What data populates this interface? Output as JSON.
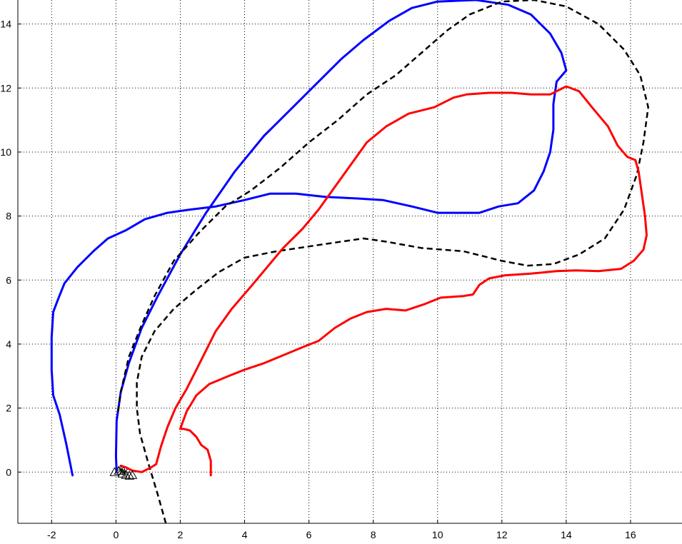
{
  "chart_data": {
    "type": "line",
    "title": "",
    "xlabel": "",
    "ylabel": "",
    "xlim": [
      -3.05,
      17.6
    ],
    "ylim": [
      -1.6,
      14.75
    ],
    "grid": true,
    "xticks": [
      -2,
      0,
      2,
      4,
      6,
      8,
      10,
      12,
      14,
      16
    ],
    "yticks": [
      0,
      2,
      4,
      6,
      8,
      10,
      12,
      14
    ],
    "series": [
      {
        "color": "#0000ff",
        "style": "solid",
        "points": [
          [
            -1.35,
            -0.1
          ],
          [
            -1.55,
            0.9
          ],
          [
            -1.75,
            1.8
          ],
          [
            -1.95,
            2.4
          ],
          [
            -2.0,
            3.2
          ],
          [
            -2.0,
            4.2
          ],
          [
            -1.95,
            5.0
          ],
          [
            -1.8,
            5.4
          ],
          [
            -1.6,
            5.9
          ],
          [
            -1.2,
            6.4
          ],
          [
            -0.7,
            6.9
          ],
          [
            -0.25,
            7.3
          ],
          [
            0.3,
            7.55
          ],
          [
            0.9,
            7.9
          ],
          [
            1.6,
            8.1
          ],
          [
            2.3,
            8.2
          ],
          [
            3.1,
            8.3
          ],
          [
            4.0,
            8.5
          ],
          [
            4.8,
            8.7
          ],
          [
            5.6,
            8.7
          ],
          [
            6.5,
            8.6
          ],
          [
            7.5,
            8.55
          ],
          [
            8.3,
            8.5
          ],
          [
            9.2,
            8.3
          ],
          [
            10.0,
            8.1
          ],
          [
            10.7,
            8.1
          ],
          [
            11.3,
            8.1
          ],
          [
            11.9,
            8.3
          ],
          [
            12.5,
            8.4
          ],
          [
            13.0,
            8.8
          ],
          [
            13.3,
            9.4
          ],
          [
            13.5,
            10.0
          ],
          [
            13.6,
            10.7
          ],
          [
            13.6,
            11.5
          ],
          [
            13.7,
            12.2
          ],
          [
            14.0,
            12.55
          ],
          [
            13.85,
            13.1
          ],
          [
            13.5,
            13.7
          ],
          [
            12.9,
            14.3
          ],
          [
            12.2,
            14.6
          ],
          [
            11.2,
            14.75
          ],
          [
            10.0,
            14.7
          ],
          [
            9.2,
            14.5
          ],
          [
            8.5,
            14.1
          ],
          [
            7.7,
            13.5
          ],
          [
            7.0,
            12.9
          ],
          [
            6.3,
            12.2
          ],
          [
            5.5,
            11.4
          ],
          [
            4.6,
            10.5
          ],
          [
            3.7,
            9.4
          ],
          [
            2.8,
            8.1
          ],
          [
            2.0,
            6.8
          ],
          [
            1.3,
            5.5
          ],
          [
            0.8,
            4.5
          ],
          [
            0.4,
            3.4
          ],
          [
            0.15,
            2.5
          ],
          [
            0.02,
            1.6
          ],
          [
            0.0,
            0.5
          ],
          [
            0.02,
            0.0
          ]
        ]
      },
      {
        "color": "#000000",
        "style": "dashed",
        "points": [
          [
            1.55,
            -1.6
          ],
          [
            1.3,
            -0.7
          ],
          [
            1.0,
            0.3
          ],
          [
            0.75,
            1.2
          ],
          [
            0.65,
            2.0
          ],
          [
            0.65,
            2.8
          ],
          [
            0.8,
            3.6
          ],
          [
            1.2,
            4.4
          ],
          [
            1.8,
            5.1
          ],
          [
            2.5,
            5.7
          ],
          [
            3.2,
            6.25
          ],
          [
            4.0,
            6.7
          ],
          [
            5.0,
            6.9
          ],
          [
            6.0,
            7.05
          ],
          [
            7.0,
            7.2
          ],
          [
            7.7,
            7.3
          ],
          [
            8.4,
            7.2
          ],
          [
            9.5,
            7.0
          ],
          [
            10.8,
            6.9
          ],
          [
            12.0,
            6.6
          ],
          [
            12.8,
            6.45
          ],
          [
            13.6,
            6.5
          ],
          [
            14.4,
            6.8
          ],
          [
            15.2,
            7.3
          ],
          [
            15.8,
            8.2
          ],
          [
            16.2,
            9.3
          ],
          [
            16.4,
            10.3
          ],
          [
            16.55,
            11.4
          ],
          [
            16.3,
            12.4
          ],
          [
            15.8,
            13.2
          ],
          [
            15.0,
            14.0
          ],
          [
            14.0,
            14.55
          ],
          [
            13.0,
            14.75
          ],
          [
            12.0,
            14.7
          ],
          [
            11.0,
            14.3
          ],
          [
            10.3,
            13.8
          ],
          [
            9.5,
            13.1
          ],
          [
            8.7,
            12.4
          ],
          [
            7.8,
            11.8
          ],
          [
            6.9,
            11.0
          ],
          [
            6.0,
            10.3
          ],
          [
            5.1,
            9.5
          ],
          [
            4.2,
            8.8
          ],
          [
            3.4,
            8.3
          ],
          [
            2.6,
            7.5
          ],
          [
            1.8,
            6.6
          ],
          [
            1.2,
            5.5
          ],
          [
            0.8,
            4.6
          ],
          [
            0.4,
            3.6
          ],
          [
            0.15,
            2.5
          ],
          [
            0.05,
            1.8
          ]
        ]
      },
      {
        "color": "#ff0000",
        "style": "solid",
        "points": [
          [
            2.95,
            -0.1
          ],
          [
            2.95,
            0.35
          ],
          [
            2.85,
            0.7
          ],
          [
            2.65,
            0.85
          ],
          [
            2.5,
            1.1
          ],
          [
            2.3,
            1.3
          ],
          [
            2.1,
            1.35
          ],
          [
            2.0,
            1.35
          ],
          [
            2.2,
            1.9
          ],
          [
            2.5,
            2.4
          ],
          [
            2.9,
            2.75
          ],
          [
            3.5,
            3.0
          ],
          [
            4.0,
            3.2
          ],
          [
            4.6,
            3.4
          ],
          [
            5.2,
            3.65
          ],
          [
            5.8,
            3.9
          ],
          [
            6.3,
            4.1
          ],
          [
            6.8,
            4.5
          ],
          [
            7.3,
            4.8
          ],
          [
            7.8,
            5.0
          ],
          [
            8.4,
            5.1
          ],
          [
            9.0,
            5.05
          ],
          [
            9.6,
            5.25
          ],
          [
            10.1,
            5.45
          ],
          [
            10.8,
            5.5
          ],
          [
            11.1,
            5.55
          ],
          [
            11.3,
            5.85
          ],
          [
            11.6,
            6.05
          ],
          [
            12.1,
            6.15
          ],
          [
            12.9,
            6.2
          ],
          [
            13.7,
            6.28
          ],
          [
            14.3,
            6.3
          ],
          [
            15.0,
            6.28
          ],
          [
            15.7,
            6.35
          ],
          [
            16.1,
            6.6
          ],
          [
            16.4,
            6.95
          ],
          [
            16.5,
            7.4
          ],
          [
            16.45,
            8.0
          ],
          [
            16.35,
            8.7
          ],
          [
            16.25,
            9.4
          ],
          [
            16.15,
            9.75
          ],
          [
            15.9,
            9.85
          ],
          [
            15.6,
            10.2
          ],
          [
            15.3,
            10.8
          ],
          [
            14.8,
            11.4
          ],
          [
            14.4,
            11.9
          ],
          [
            14.0,
            12.05
          ],
          [
            13.5,
            11.8
          ],
          [
            12.9,
            11.8
          ],
          [
            12.3,
            11.85
          ],
          [
            11.6,
            11.85
          ],
          [
            10.9,
            11.8
          ],
          [
            10.5,
            11.7
          ],
          [
            9.9,
            11.4
          ],
          [
            9.1,
            11.2
          ],
          [
            8.4,
            10.8
          ],
          [
            7.8,
            10.3
          ],
          [
            7.3,
            9.6
          ],
          [
            6.8,
            8.9
          ],
          [
            6.3,
            8.2
          ],
          [
            5.8,
            7.6
          ],
          [
            5.2,
            7.0
          ],
          [
            4.7,
            6.4
          ],
          [
            4.2,
            5.8
          ],
          [
            3.6,
            5.1
          ],
          [
            3.1,
            4.4
          ],
          [
            2.8,
            3.8
          ],
          [
            2.5,
            3.2
          ],
          [
            2.2,
            2.6
          ],
          [
            1.85,
            2.0
          ],
          [
            1.6,
            1.4
          ],
          [
            1.4,
            0.8
          ],
          [
            1.25,
            0.25
          ],
          [
            1.1,
            0.15
          ],
          [
            0.8,
            0.0
          ],
          [
            0.5,
            0.05
          ],
          [
            0.3,
            0.15
          ],
          [
            0.15,
            0.2
          ]
        ]
      }
    ]
  }
}
